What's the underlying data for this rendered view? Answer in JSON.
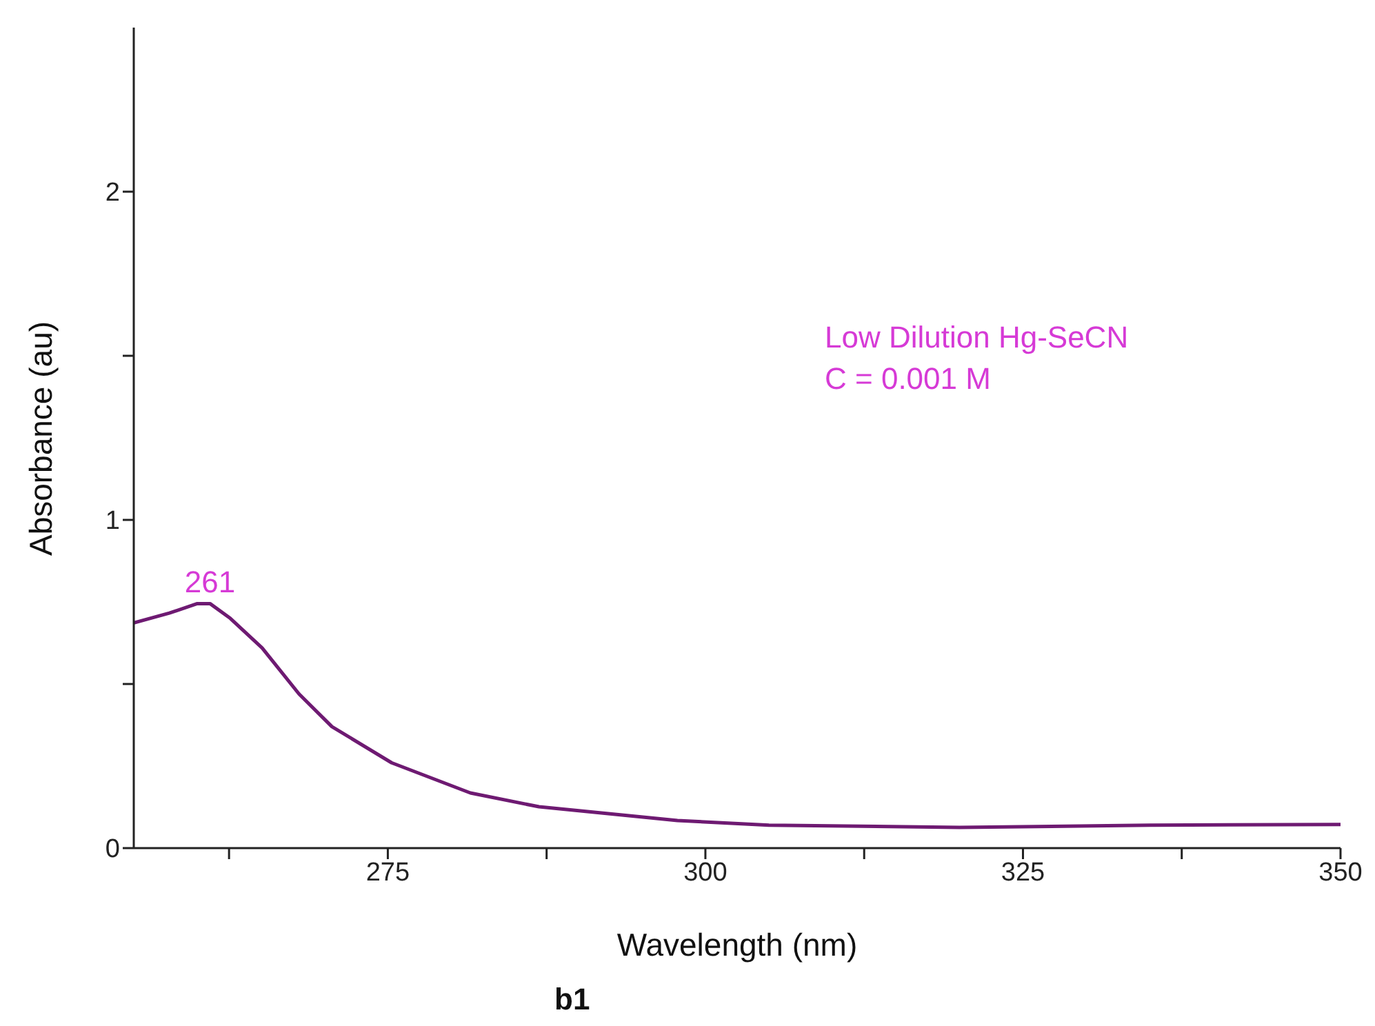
{
  "chart_data": {
    "type": "line",
    "xlabel": "Wavelength (nm)",
    "ylabel": "Absorbance (au)",
    "x": [
      255,
      257.8,
      260,
      261,
      262.6,
      265.1,
      268,
      270.6,
      275.3,
      281.5,
      286.9,
      297.8,
      305,
      320,
      335,
      350
    ],
    "series": [
      {
        "color": "#6e1a72",
        "values": [
          0.686,
          0.716,
          0.745,
          0.745,
          0.7,
          0.61,
          0.47,
          0.37,
          0.26,
          0.168,
          0.126,
          0.084,
          0.07,
          0.063,
          0.07,
          0.072
        ]
      }
    ],
    "xlim": [
      255,
      350
    ],
    "xticks": [
      {
        "value": 262.5,
        "label": null
      },
      275,
      {
        "value": 287.5,
        "label": null
      },
      300,
      {
        "value": 312.5,
        "label": null
      },
      325,
      {
        "value": 337.5,
        "label": null
      },
      350
    ],
    "ylim": [
      0,
      2.5
    ],
    "yticks": [
      0,
      {
        "value": 0.5,
        "label": null
      },
      1,
      {
        "value": 1.5,
        "label": null
      },
      2
    ],
    "grid": false,
    "legend": false,
    "marker": "none",
    "line_style": "solid",
    "annotations": [
      {
        "text": "261",
        "x": 261,
        "y": 0.745
      },
      "Low Dilution Hg-SeCN",
      "C = 0.001 M",
      "b1"
    ]
  }
}
